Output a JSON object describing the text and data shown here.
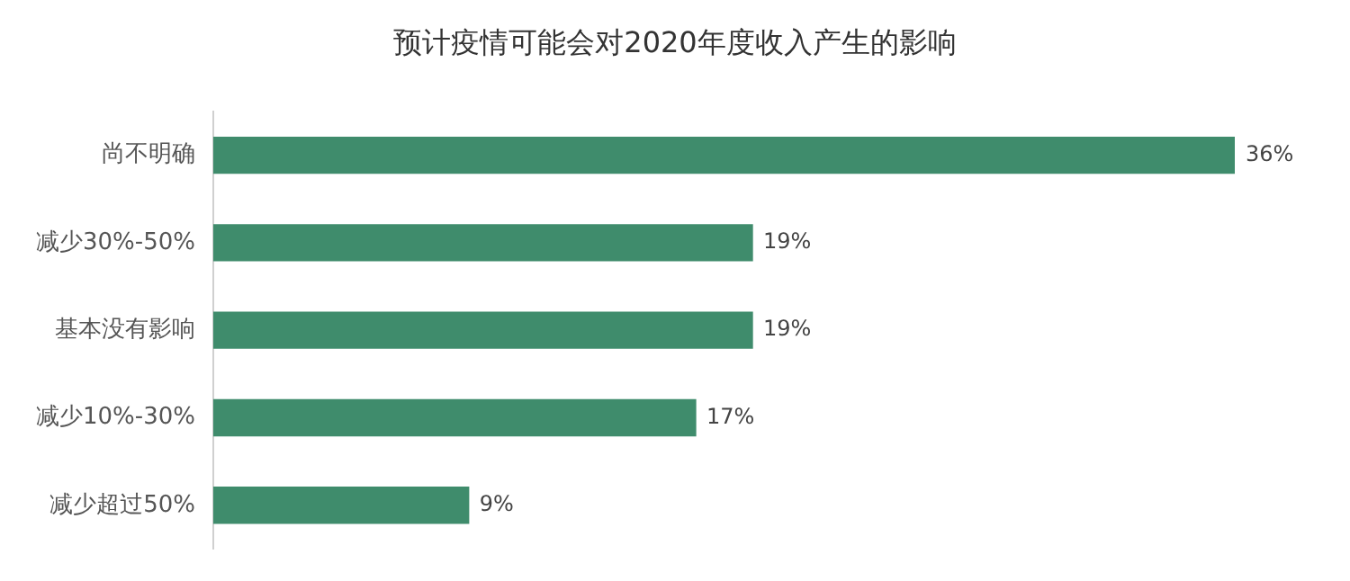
{
  "chart_data": {
    "type": "bar",
    "orientation": "horizontal",
    "title": "预计疫情可能会对2020年度收入产生的影响",
    "categories": [
      "尚不明确",
      "减少30%-50%",
      "基本没有影响",
      "减少10%-30%",
      "减少超过50%"
    ],
    "values": [
      36,
      19,
      19,
      17,
      9
    ],
    "value_labels": [
      "36%",
      "19%",
      "19%",
      "17%",
      "9%"
    ],
    "color": "#3f8c6c",
    "grid": false,
    "legend": false
  }
}
